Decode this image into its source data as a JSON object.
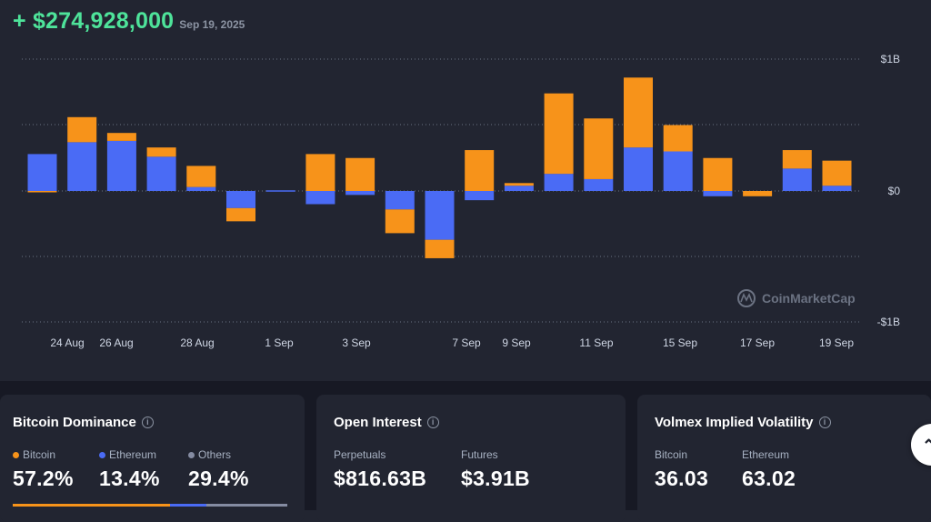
{
  "header": {
    "value": "+ $274,928,000",
    "date": "Sep 19, 2025"
  },
  "colors": {
    "bitcoin": "#f7931a",
    "ethereum": "#4a6bf5",
    "others": "#858ca2",
    "positive": "#4ee39a",
    "background": "#222531"
  },
  "chart_data": {
    "type": "bar",
    "stacked": true,
    "y_axis_ticks": [
      "$1B",
      "$0",
      "-$1B"
    ],
    "ylim": [
      -1000,
      1000
    ],
    "y_unit": "$M",
    "x_tick_labels": [
      "24 Aug",
      "26 Aug",
      "28 Aug",
      "1 Sep",
      "3 Sep",
      "7 Sep",
      "9 Sep",
      "11 Sep",
      "15 Sep",
      "17 Sep",
      "19 Sep"
    ],
    "grid": true,
    "watermark": "CoinMarketCap",
    "series": [
      {
        "key": "ethereum",
        "values": [
          280,
          370,
          380,
          260,
          30,
          -130,
          5,
          -100,
          -30,
          -140,
          -370,
          -70,
          40,
          130,
          90,
          330,
          300,
          -40,
          0,
          170,
          40
        ]
      },
      {
        "key": "bitcoin",
        "values": [
          -10,
          190,
          60,
          70,
          160,
          -100,
          0,
          280,
          250,
          -180,
          -140,
          310,
          20,
          610,
          460,
          530,
          200,
          250,
          -40,
          140,
          190
        ]
      }
    ]
  },
  "cards": {
    "dominance": {
      "title": "Bitcoin Dominance",
      "items": [
        {
          "label": "Bitcoin",
          "value": "57.2%",
          "fraction": 0.572,
          "color": "#f7931a"
        },
        {
          "label": "Ethereum",
          "value": "13.4%",
          "fraction": 0.134,
          "color": "#4a6bf5"
        },
        {
          "label": "Others",
          "value": "29.4%",
          "fraction": 0.294,
          "color": "#858ca2"
        }
      ]
    },
    "open_interest": {
      "title": "Open Interest",
      "items": [
        {
          "label": "Perpetuals",
          "value": "$816.63B"
        },
        {
          "label": "Futures",
          "value": "$3.91B"
        }
      ]
    },
    "volatility": {
      "title": "Volmex Implied Volatility",
      "items": [
        {
          "label": "Bitcoin",
          "value": "36.03"
        },
        {
          "label": "Ethereum",
          "value": "63.02"
        }
      ]
    }
  },
  "scroll_button": {
    "icon": "chevron-up-icon"
  }
}
